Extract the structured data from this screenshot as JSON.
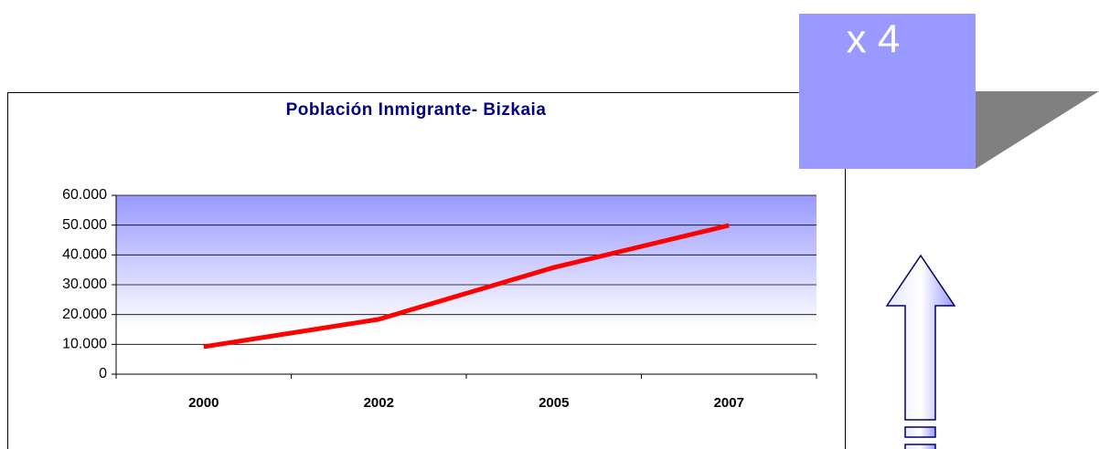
{
  "chart_data": {
    "type": "line",
    "title": "Población Inmigrante- Bizkaia",
    "categories": [
      "2000",
      "2002",
      "2005",
      "2007"
    ],
    "series": [
      {
        "name": "Población Inmigrante- Bizkaia",
        "color": "#ff0000",
        "values": [
          9200,
          18400,
          35800,
          49900
        ]
      }
    ],
    "ylim": [
      0,
      60000
    ],
    "yticks": [
      0,
      {
        "value": 10000,
        "label": "10.000"
      },
      {
        "value": 20000,
        "label": "20.000"
      },
      {
        "value": 30000,
        "label": "30.000"
      },
      {
        "value": 40000,
        "label": "40.000"
      },
      {
        "value": 50000,
        "label": "50.000"
      },
      {
        "value": 60000,
        "label": "60.000"
      }
    ],
    "grid": true
  },
  "callout": "x 4"
}
